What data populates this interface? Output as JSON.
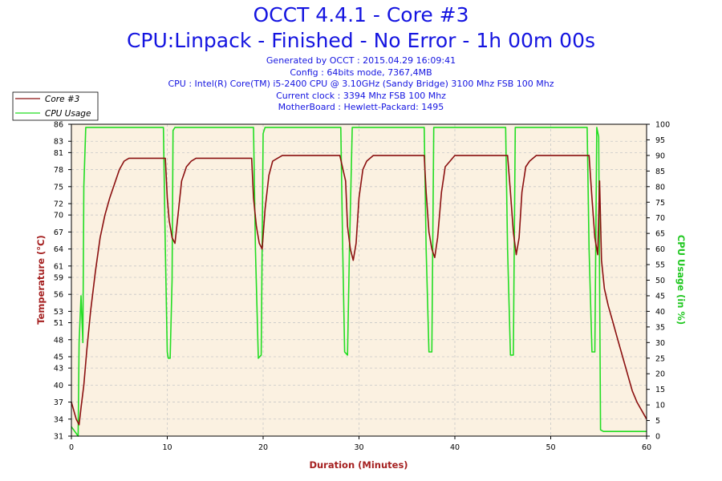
{
  "header": {
    "title": "OCCT 4.4.1 - Core #3",
    "subtitle": "CPU:Linpack - Finished - No Error - 1h 00m 00s",
    "info_lines": [
      "Generated by OCCT : 2015.04.29 16:09:41",
      "Config : 64bits mode, 7367,4MB",
      "CPU : Intel(R) Core(TM) i5-2400 CPU @ 3.10GHz (Sandy Bridge) 3100 Mhz FSB 100 Mhz",
      "Current clock : 3394 Mhz FSB 100 Mhz",
      "MotherBoard : Hewlett-Packard: 1495"
    ]
  },
  "colors": {
    "temperature": "#8b1010",
    "cpu_usage": "#22dd22",
    "plot_background": "#fbf1e1",
    "grid": "#c8c8c8"
  },
  "chart_data": {
    "type": "line",
    "xlabel": "Duration (Minutes)",
    "ylabel_left": "Temperature (°C)",
    "ylabel_right": "CPU Usage (in %)",
    "xlim": [
      0,
      60
    ],
    "ylim_left": [
      31,
      86
    ],
    "ylim_right": [
      0,
      100
    ],
    "x_ticks": [
      0,
      10,
      20,
      30,
      40,
      50,
      60
    ],
    "y_ticks_left": [
      31,
      34,
      37,
      40,
      43,
      45,
      48,
      51,
      53,
      56,
      59,
      61,
      64,
      67,
      70,
      72,
      75,
      78,
      81,
      83,
      86
    ],
    "y_ticks_left_labels": [
      "31",
      "34",
      "37",
      "40",
      "43",
      "45",
      "48",
      "51",
      "53",
      "56",
      "59",
      "61",
      "64",
      "67",
      "70",
      "72",
      "75",
      "78",
      "81",
      "83",
      "86"
    ],
    "y_ticks_right": [
      0,
      5,
      10,
      15,
      20,
      25,
      30,
      35,
      40,
      45,
      50,
      55,
      60,
      65,
      70,
      75,
      80,
      85,
      90,
      95,
      100
    ],
    "grid": true,
    "legend_position": "top-left",
    "series": [
      {
        "name": "Core #3",
        "axis": "left",
        "x": [
          0,
          0.5,
          0.8,
          1.0,
          1.3,
          1.6,
          2.0,
          2.5,
          3.0,
          3.5,
          4.0,
          4.5,
          5.0,
          5.5,
          6.0,
          7.0,
          8.0,
          9.0,
          9.8,
          10.0,
          10.2,
          10.5,
          10.8,
          11.0,
          11.5,
          12.0,
          12.5,
          13.0,
          15.0,
          17.0,
          18.8,
          19.0,
          19.3,
          19.6,
          19.9,
          20.2,
          20.6,
          21.0,
          21.5,
          22.0,
          24.0,
          26.0,
          28.0,
          28.6,
          28.8,
          29.1,
          29.4,
          29.7,
          30.0,
          30.4,
          30.8,
          31.5,
          33.0,
          35.0,
          36.8,
          37.0,
          37.3,
          37.6,
          37.9,
          38.2,
          38.6,
          39.0,
          39.5,
          40.0,
          42.0,
          44.0,
          45.5,
          45.8,
          46.1,
          46.4,
          46.7,
          47.0,
          47.4,
          47.8,
          48.5,
          50.0,
          52.0,
          54.0,
          54.3,
          54.6,
          54.9,
          55.1,
          55.3,
          55.6,
          56.0,
          56.5,
          57.0,
          57.5,
          58.0,
          58.5,
          59.0,
          59.5,
          60.0
        ],
        "values": [
          37,
          34,
          33,
          36,
          40,
          46,
          53,
          60,
          66,
          70,
          73,
          75.5,
          78,
          79.5,
          80,
          80,
          80,
          80,
          80,
          73,
          69,
          66,
          65,
          68,
          76,
          78.5,
          79.5,
          80,
          80,
          80,
          80,
          73,
          68,
          65,
          64,
          71,
          77,
          79.5,
          80,
          80.5,
          80.5,
          80.5,
          80.5,
          76,
          68,
          64,
          62,
          65,
          73,
          78,
          79.5,
          80.5,
          80.5,
          80.5,
          80.5,
          74,
          67,
          64,
          62.5,
          66,
          74,
          78.5,
          79.5,
          80.5,
          80.5,
          80.5,
          80.5,
          74,
          67,
          63,
          66,
          74,
          78.5,
          79.5,
          80.5,
          80.5,
          80.5,
          80.5,
          73,
          66,
          63,
          76,
          62,
          57,
          54,
          51,
          48,
          45,
          42,
          39,
          37,
          35.5,
          34
        ]
      },
      {
        "name": "CPU Usage",
        "axis": "right",
        "x": [
          0,
          0.7,
          0.8,
          1.0,
          1.2,
          1.3,
          1.5,
          9.6,
          9.8,
          10.0,
          10.1,
          10.3,
          10.5,
          10.6,
          10.8,
          19.0,
          19.2,
          19.5,
          19.8,
          20.0,
          20.2,
          20.4,
          28.1,
          28.3,
          28.5,
          28.8,
          29.0,
          29.3,
          29.5,
          36.8,
          37.0,
          37.3,
          37.6,
          37.8,
          38.0,
          45.3,
          45.5,
          45.8,
          46.1,
          46.3,
          46.5,
          53.8,
          54.0,
          54.3,
          54.6,
          54.8,
          55.0,
          55.2,
          55.5,
          60.0
        ],
        "values": [
          3,
          0,
          30,
          45,
          30,
          80,
          99,
          99,
          60,
          27,
          25,
          25,
          50,
          98,
          99,
          99,
          60,
          25,
          26,
          97,
          99,
          99,
          99,
          60,
          27,
          26,
          60,
          99,
          99,
          99,
          60,
          27,
          27,
          99,
          99,
          99,
          60,
          26,
          26,
          99,
          99,
          99,
          60,
          27,
          27,
          99,
          96,
          2,
          1.5,
          1.5
        ]
      }
    ]
  }
}
